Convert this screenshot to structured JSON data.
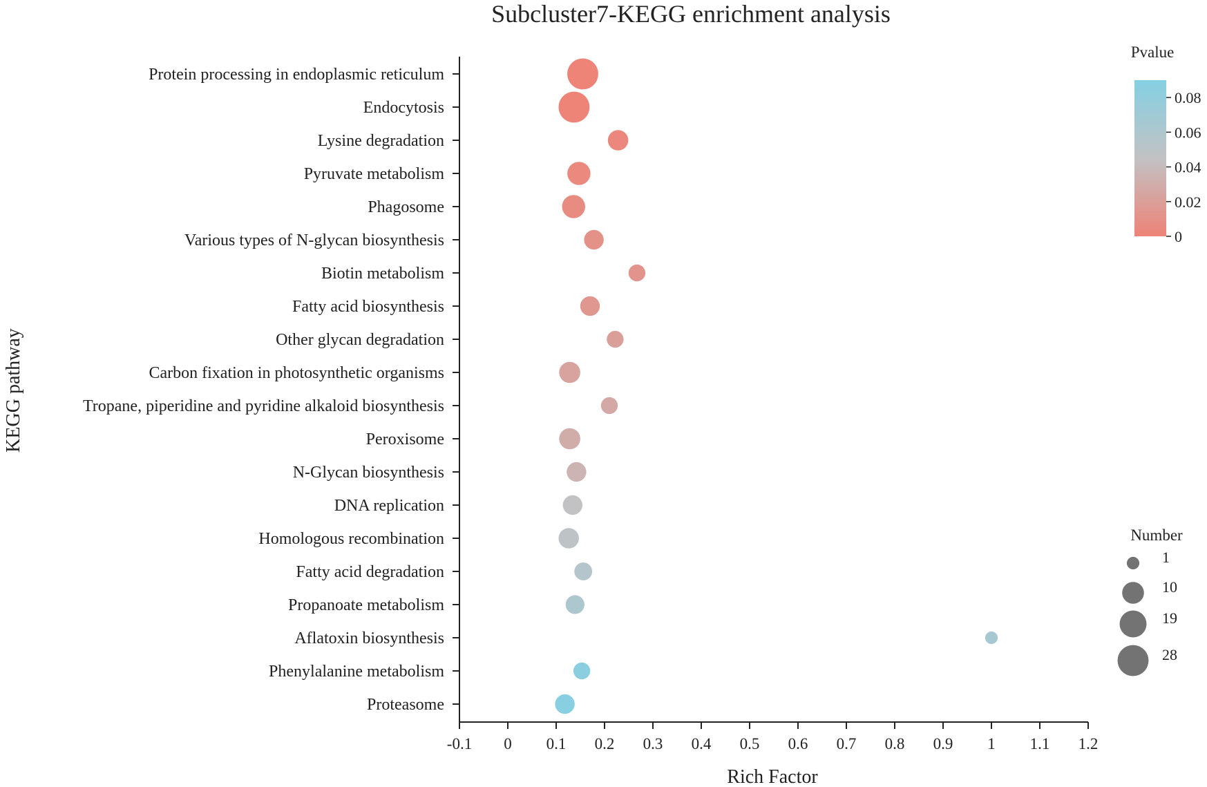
{
  "chart_data": {
    "type": "scatter",
    "title": "Subcluster7-KEGG enrichment analysis",
    "xlabel": "Rich Factor",
    "ylabel": "KEGG pathway",
    "xlim": [
      -0.1,
      1.2
    ],
    "x_ticks": [
      -0.1,
      0,
      0.1,
      0.2,
      0.3,
      0.4,
      0.5,
      0.6,
      0.7,
      0.8,
      0.9,
      1,
      1.1,
      1.2
    ],
    "x_tick_labels": [
      "-0.1",
      "0",
      "0.1",
      "0.2",
      "0.3",
      "0.4",
      "0.5",
      "0.6",
      "0.7",
      "0.8",
      "0.9",
      "1",
      "1.1",
      "1.2"
    ],
    "points": [
      {
        "pathway": "Protein processing in endoplasmic reticulum",
        "rich_factor": 0.155,
        "number": 28,
        "pvalue": 0.0
      },
      {
        "pathway": "Endocytosis",
        "rich_factor": 0.137,
        "number": 28,
        "pvalue": 0.0
      },
      {
        "pathway": "Lysine degradation",
        "rich_factor": 0.228,
        "number": 8,
        "pvalue": 0.003
      },
      {
        "pathway": "Pyruvate metabolism",
        "rich_factor": 0.147,
        "number": 12,
        "pvalue": 0.004
      },
      {
        "pathway": "Phagosome",
        "rich_factor": 0.136,
        "number": 12,
        "pvalue": 0.006
      },
      {
        "pathway": "Various types of N-glycan biosynthesis",
        "rich_factor": 0.178,
        "number": 7,
        "pvalue": 0.01
      },
      {
        "pathway": "Biotin metabolism",
        "rich_factor": 0.267,
        "number": 4,
        "pvalue": 0.012
      },
      {
        "pathway": "Fatty acid biosynthesis",
        "rich_factor": 0.17,
        "number": 7,
        "pvalue": 0.014
      },
      {
        "pathway": "Other glycan degradation",
        "rich_factor": 0.222,
        "number": 4,
        "pvalue": 0.02
      },
      {
        "pathway": "Carbon fixation in photosynthetic organisms",
        "rich_factor": 0.128,
        "number": 9,
        "pvalue": 0.023
      },
      {
        "pathway": "Tropane, piperidine and pyridine alkaloid biosynthesis",
        "rich_factor": 0.21,
        "number": 4,
        "pvalue": 0.027
      },
      {
        "pathway": "Peroxisome",
        "rich_factor": 0.128,
        "number": 9,
        "pvalue": 0.03
      },
      {
        "pathway": "N-Glycan biosynthesis",
        "rich_factor": 0.142,
        "number": 7,
        "pvalue": 0.035
      },
      {
        "pathway": "DNA replication",
        "rich_factor": 0.134,
        "number": 7,
        "pvalue": 0.045
      },
      {
        "pathway": "Homologous recombination",
        "rich_factor": 0.126,
        "number": 8,
        "pvalue": 0.048
      },
      {
        "pathway": "Fatty acid degradation",
        "rich_factor": 0.156,
        "number": 5,
        "pvalue": 0.055
      },
      {
        "pathway": "Propanoate metabolism",
        "rich_factor": 0.139,
        "number": 6,
        "pvalue": 0.06
      },
      {
        "pathway": "Aflatoxin biosynthesis",
        "rich_factor": 1.0,
        "number": 1,
        "pvalue": 0.065
      },
      {
        "pathway": "Phenylalanine metabolism",
        "rich_factor": 0.153,
        "number": 4,
        "pvalue": 0.085
      },
      {
        "pathway": "Proteasome",
        "rich_factor": 0.118,
        "number": 7,
        "pvalue": 0.088
      }
    ],
    "color_legend": {
      "title": "Pvalue",
      "range": [
        0,
        0.09
      ],
      "ticks": [
        0.08,
        0.06,
        0.04,
        0.02,
        0
      ],
      "tick_labels": [
        "0.08",
        "0.06",
        "0.04",
        "0.02",
        "0"
      ],
      "low_color": "#ee8377",
      "mid_color": "#c2c2c4",
      "high_color": "#84d0e2"
    },
    "size_legend": {
      "title": "Number",
      "values": [
        1,
        10,
        19,
        28
      ],
      "labels": [
        "1",
        "10",
        "19",
        "28"
      ],
      "color": "#737373"
    }
  }
}
